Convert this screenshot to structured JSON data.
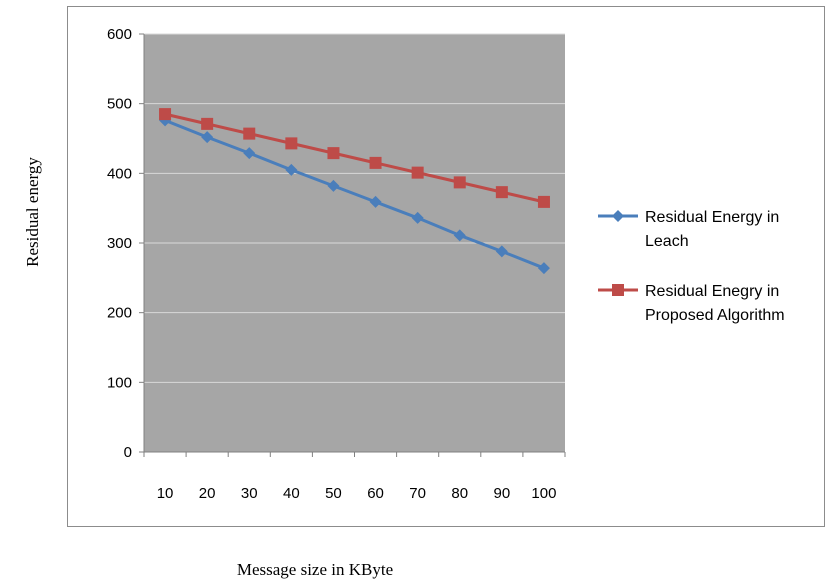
{
  "chart_data": {
    "type": "line",
    "title": "",
    "xlabel": "Message size in KByte",
    "ylabel": "Residual energy",
    "categories": [
      "10",
      "20",
      "30",
      "40",
      "50",
      "60",
      "70",
      "80",
      "90",
      "100"
    ],
    "ylim": [
      0,
      600
    ],
    "yticks": [
      "0",
      "100",
      "200",
      "300",
      "400",
      "500",
      "600"
    ],
    "grid": "horizontal",
    "legend_position": "right",
    "plot_background": "#a6a6a6",
    "series": [
      {
        "name_lines": [
          "Residual Energy in",
          "Leach"
        ],
        "color": "#4a7ebb",
        "marker": "diamond",
        "values": [
          476,
          452,
          429,
          405,
          382,
          359,
          336,
          311,
          288,
          264
        ]
      },
      {
        "name_lines": [
          "Residual Enegry in",
          "Proposed Algorithm"
        ],
        "color": "#be4b48",
        "marker": "square",
        "values": [
          485,
          471,
          457,
          443,
          429,
          415,
          401,
          387,
          373,
          359
        ]
      }
    ]
  }
}
